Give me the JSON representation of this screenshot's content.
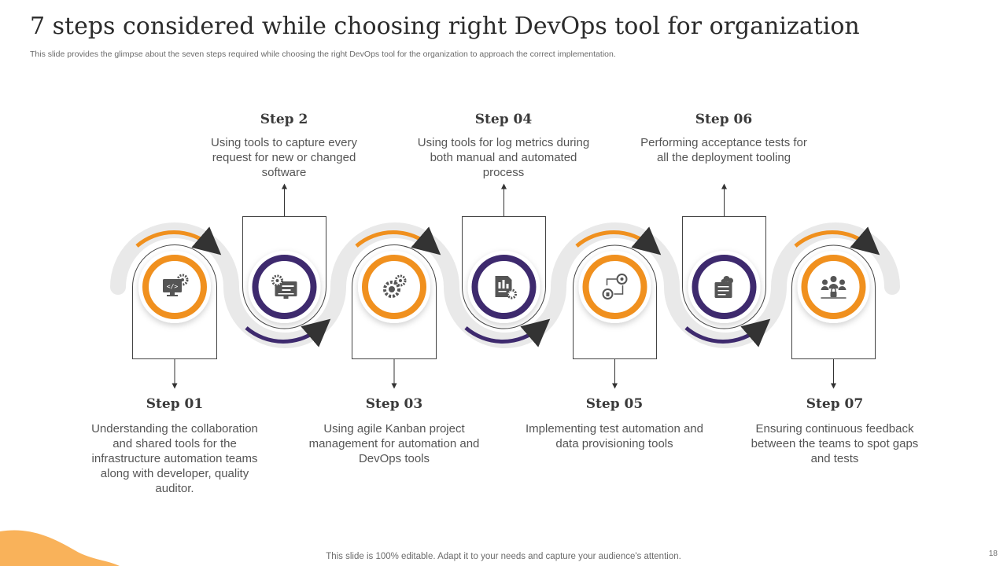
{
  "title": "7 steps considered while choosing right DevOps tool for organization",
  "subtitle": "This slide provides the glimpse about the seven steps required while choosing the right DevOps tool for the organization to approach the correct implementation.",
  "colors": {
    "orange": "#f0901e",
    "purple": "#3e2a6e",
    "track": "#e9e9e9",
    "blob": "#f9b25a"
  },
  "steps": [
    {
      "label": "Step 01",
      "text": "Understanding the collaboration and shared tools for the infrastructure automation teams along with developer, quality auditor.",
      "icon": "code-monitor-gear-icon"
    },
    {
      "label": "Step 2",
      "text": "Using tools to capture every request for new or changed software",
      "icon": "gear-dashboard-monitor-icon"
    },
    {
      "label": "Step 03",
      "text": "Using agile Kanban project management for automation and DevOps tools",
      "icon": "gears-icon"
    },
    {
      "label": "Step 04",
      "text": "Using tools for log metrics during both manual and automated process",
      "icon": "report-document-gear-icon"
    },
    {
      "label": "Step 05",
      "text": "Implementing test automation and data provisioning tools",
      "icon": "network-cycle-icon"
    },
    {
      "label": "Step 06",
      "text": "Performing acceptance tests for all the deployment tooling",
      "icon": "cloud-server-icon"
    },
    {
      "label": "Step 07",
      "text": "Ensuring continuous feedback between the teams to spot gaps and tests",
      "icon": "team-lock-icon"
    }
  ],
  "footer": "This slide is 100% editable. Adapt it to your needs and capture your audience's attention.",
  "page_number": "18"
}
